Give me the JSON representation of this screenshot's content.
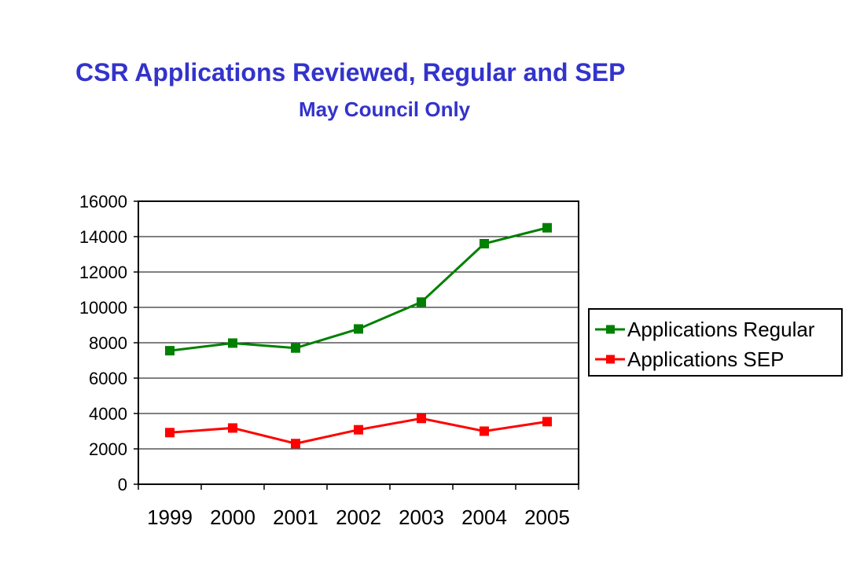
{
  "chart_data": {
    "type": "line",
    "title": "CSR Applications Reviewed, Regular and SEP",
    "subtitle": "May Council Only",
    "categories": [
      "1999",
      "2000",
      "2001",
      "2002",
      "2003",
      "2004",
      "2005"
    ],
    "series": [
      {
        "name": "Applications Regular",
        "color": "#008000",
        "values": [
          7550,
          7980,
          7700,
          8780,
          10300,
          13600,
          14500
        ]
      },
      {
        "name": "Applications SEP",
        "color": "#ff0000",
        "values": [
          2920,
          3180,
          2300,
          3080,
          3720,
          3000,
          3540
        ]
      }
    ],
    "y_ticks": [
      "0",
      "2000",
      "4000",
      "6000",
      "8000",
      "10000",
      "12000",
      "14000",
      "16000"
    ],
    "ylim": [
      0,
      16000
    ],
    "grid": true,
    "legend_position": "right"
  }
}
